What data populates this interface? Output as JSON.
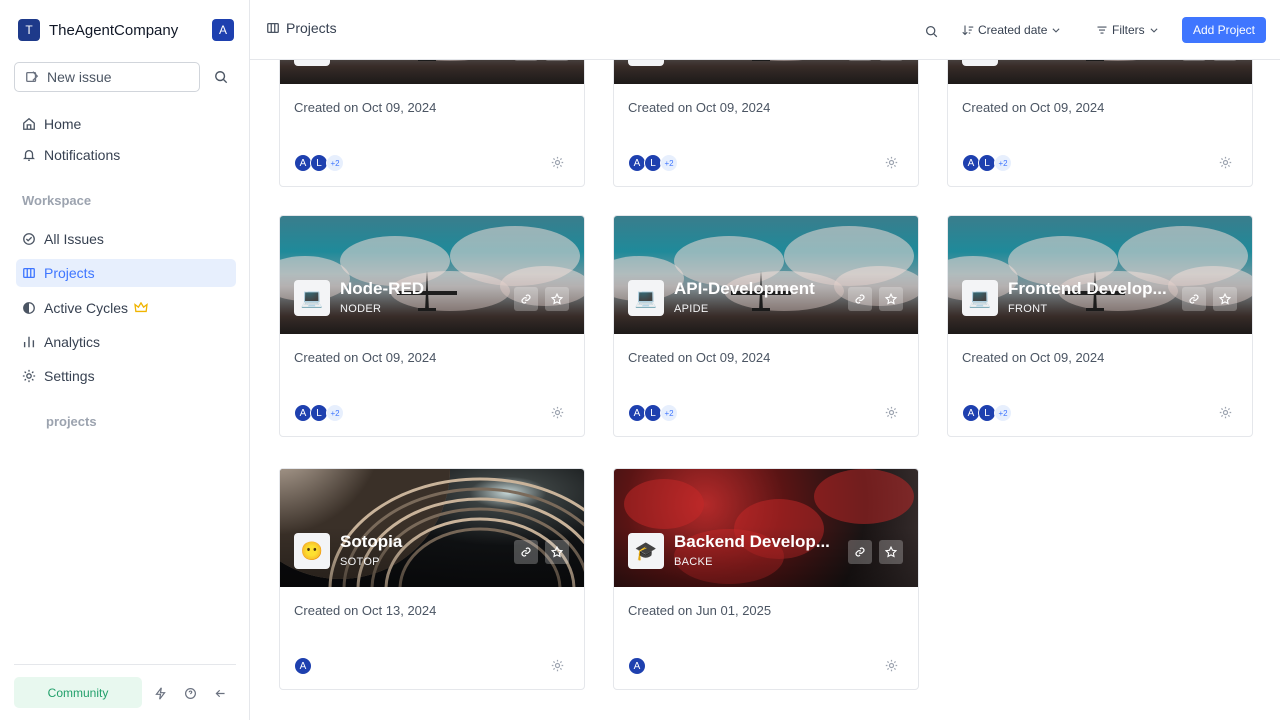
{
  "workspace": {
    "logo_letter": "T",
    "name": "TheAgentCompany",
    "user_initial": "A"
  },
  "sidebar": {
    "new_issue": "New issue",
    "nav": [
      {
        "label": "Home"
      },
      {
        "label": "Notifications"
      }
    ],
    "workspace_label": "Workspace",
    "workspace_items": [
      {
        "label": "All Issues"
      },
      {
        "label": "Projects"
      },
      {
        "label": "Active Cycles"
      },
      {
        "label": "Analytics"
      },
      {
        "label": "Settings"
      }
    ],
    "projects_label": "projects",
    "community": "Community"
  },
  "header": {
    "breadcrumb": "Projects",
    "sort_label": "Created date",
    "filters_label": "Filters",
    "add_project": "Add Project"
  },
  "projects": [
    {
      "name": "",
      "identifier": "",
      "created": "Created on Oct 09, 2024",
      "members": [
        "A",
        "L"
      ],
      "extra": "+2",
      "cover": "sky",
      "logo_icon": "laptop-icon"
    },
    {
      "name": "",
      "identifier": "",
      "created": "Created on Oct 09, 2024",
      "members": [
        "A",
        "L"
      ],
      "extra": "+2",
      "cover": "sky",
      "logo_icon": "laptop-icon"
    },
    {
      "name": "",
      "identifier": "",
      "created": "Created on Oct 09, 2024",
      "members": [
        "A",
        "L"
      ],
      "extra": "+2",
      "cover": "sky",
      "logo_icon": "laptop-icon"
    },
    {
      "name": "Node-RED",
      "identifier": "NODER",
      "created": "Created on Oct 09, 2024",
      "members": [
        "A",
        "L"
      ],
      "extra": "+2",
      "cover": "sky",
      "logo_icon": "laptop-icon"
    },
    {
      "name": "API-Development",
      "identifier": "APIDE",
      "created": "Created on Oct 09, 2024",
      "members": [
        "A",
        "L"
      ],
      "extra": "+2",
      "cover": "sky",
      "logo_icon": "laptop-icon"
    },
    {
      "name": "Frontend Develop...",
      "identifier": "FRONT",
      "created": "Created on Oct 09, 2024",
      "members": [
        "A",
        "L"
      ],
      "extra": "+2",
      "cover": "sky",
      "logo_icon": "laptop-icon"
    },
    {
      "name": "Sotopia",
      "identifier": "SOTOP",
      "created": "Created on Oct 13, 2024",
      "members": [
        "A"
      ],
      "extra": "",
      "cover": "space",
      "logo_icon": "emoji-face-icon"
    },
    {
      "name": "Backend Develop...",
      "identifier": "BACKE",
      "created": "Created on Jun 01, 2025",
      "members": [
        "A"
      ],
      "extra": "",
      "cover": "red",
      "logo_icon": "graduation-cap-icon"
    }
  ],
  "colors": {
    "accent": "#3f76ff",
    "avatar": "#1e40af",
    "community_bg": "#e8f8ef",
    "community_text": "#22a06b"
  }
}
